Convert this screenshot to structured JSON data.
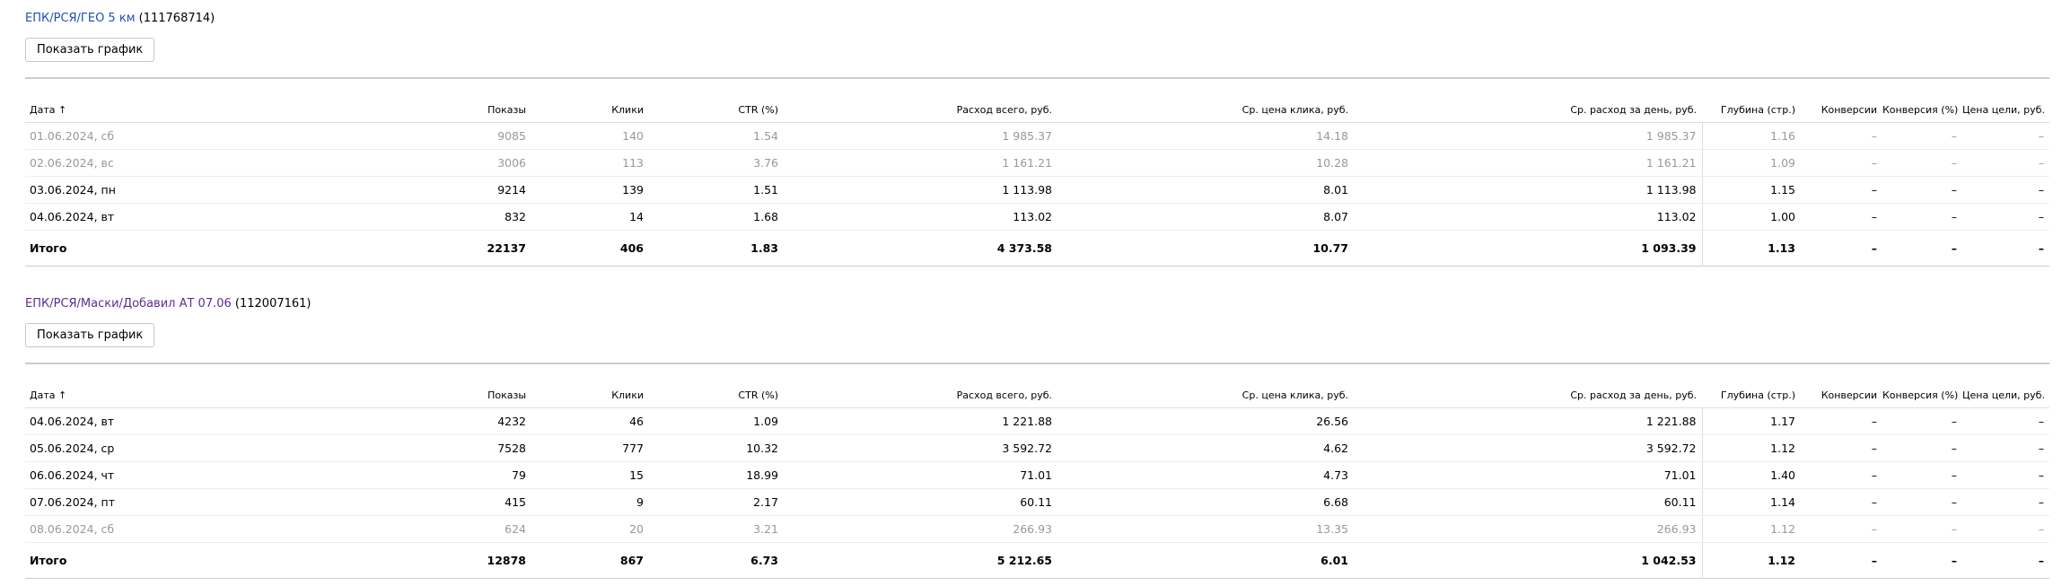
{
  "campaigns": [
    {
      "name": "ЕПК/РСЯ/ГЕО 5 км",
      "id": "(111768714)",
      "link_color": "#1f4fb5",
      "button": "Показать график",
      "columns": [
        "Дата ↑",
        "Показы",
        "Клики",
        "CTR (%)",
        "Расход всего, руб.",
        "Ср. цена клика, руб.",
        "Ср. расход за день, руб.",
        "Глубина (стр.)",
        "Конверсии",
        "Конверсия (%)",
        "Цена цели, руб."
      ],
      "rows": [
        {
          "muted": true,
          "cells": [
            "01.06.2024, сб",
            "9085",
            "140",
            "1.54",
            "1 985.37",
            "14.18",
            "1 985.37",
            "1.16",
            "–",
            "–",
            "–"
          ]
        },
        {
          "muted": true,
          "cells": [
            "02.06.2024, вс",
            "3006",
            "113",
            "3.76",
            "1 161.21",
            "10.28",
            "1 161.21",
            "1.09",
            "–",
            "–",
            "–"
          ]
        },
        {
          "muted": false,
          "cells": [
            "03.06.2024, пн",
            "9214",
            "139",
            "1.51",
            "1 113.98",
            "8.01",
            "1 113.98",
            "1.15",
            "–",
            "–",
            "–"
          ]
        },
        {
          "muted": false,
          "cells": [
            "04.06.2024, вт",
            "832",
            "14",
            "1.68",
            "113.02",
            "8.07",
            "113.02",
            "1.00",
            "–",
            "–",
            "–"
          ]
        }
      ],
      "total": [
        "Итого",
        "22137",
        "406",
        "1.83",
        "4 373.58",
        "10.77",
        "1 093.39",
        "1.13",
        "–",
        "–",
        "–"
      ]
    },
    {
      "name": "ЕПК/РСЯ/Маски/Добавил АТ 07.06",
      "id": "(112007161)",
      "link_color": "#5c2d91",
      "button": "Показать график",
      "columns": [
        "Дата ↑",
        "Показы",
        "Клики",
        "CTR (%)",
        "Расход всего, руб.",
        "Ср. цена клика, руб.",
        "Ср. расход за день, руб.",
        "Глубина (стр.)",
        "Конверсии",
        "Конверсия (%)",
        "Цена цели, руб."
      ],
      "rows": [
        {
          "muted": false,
          "cells": [
            "04.06.2024, вт",
            "4232",
            "46",
            "1.09",
            "1 221.88",
            "26.56",
            "1 221.88",
            "1.17",
            "–",
            "–",
            "–"
          ]
        },
        {
          "muted": false,
          "cells": [
            "05.06.2024, ср",
            "7528",
            "777",
            "10.32",
            "3 592.72",
            "4.62",
            "3 592.72",
            "1.12",
            "–",
            "–",
            "–"
          ]
        },
        {
          "muted": false,
          "cells": [
            "06.06.2024, чт",
            "79",
            "15",
            "18.99",
            "71.01",
            "4.73",
            "71.01",
            "1.40",
            "–",
            "–",
            "–"
          ]
        },
        {
          "muted": false,
          "cells": [
            "07.06.2024, пт",
            "415",
            "9",
            "2.17",
            "60.11",
            "6.68",
            "60.11",
            "1.14",
            "–",
            "–",
            "–"
          ]
        },
        {
          "muted": true,
          "cells": [
            "08.06.2024, сб",
            "624",
            "20",
            "3.21",
            "266.93",
            "13.35",
            "266.93",
            "1.12",
            "–",
            "–",
            "–"
          ]
        }
      ],
      "total": [
        "Итого",
        "12878",
        "867",
        "6.73",
        "5 212.65",
        "6.01",
        "1 042.53",
        "1.12",
        "–",
        "–",
        "–"
      ]
    }
  ]
}
